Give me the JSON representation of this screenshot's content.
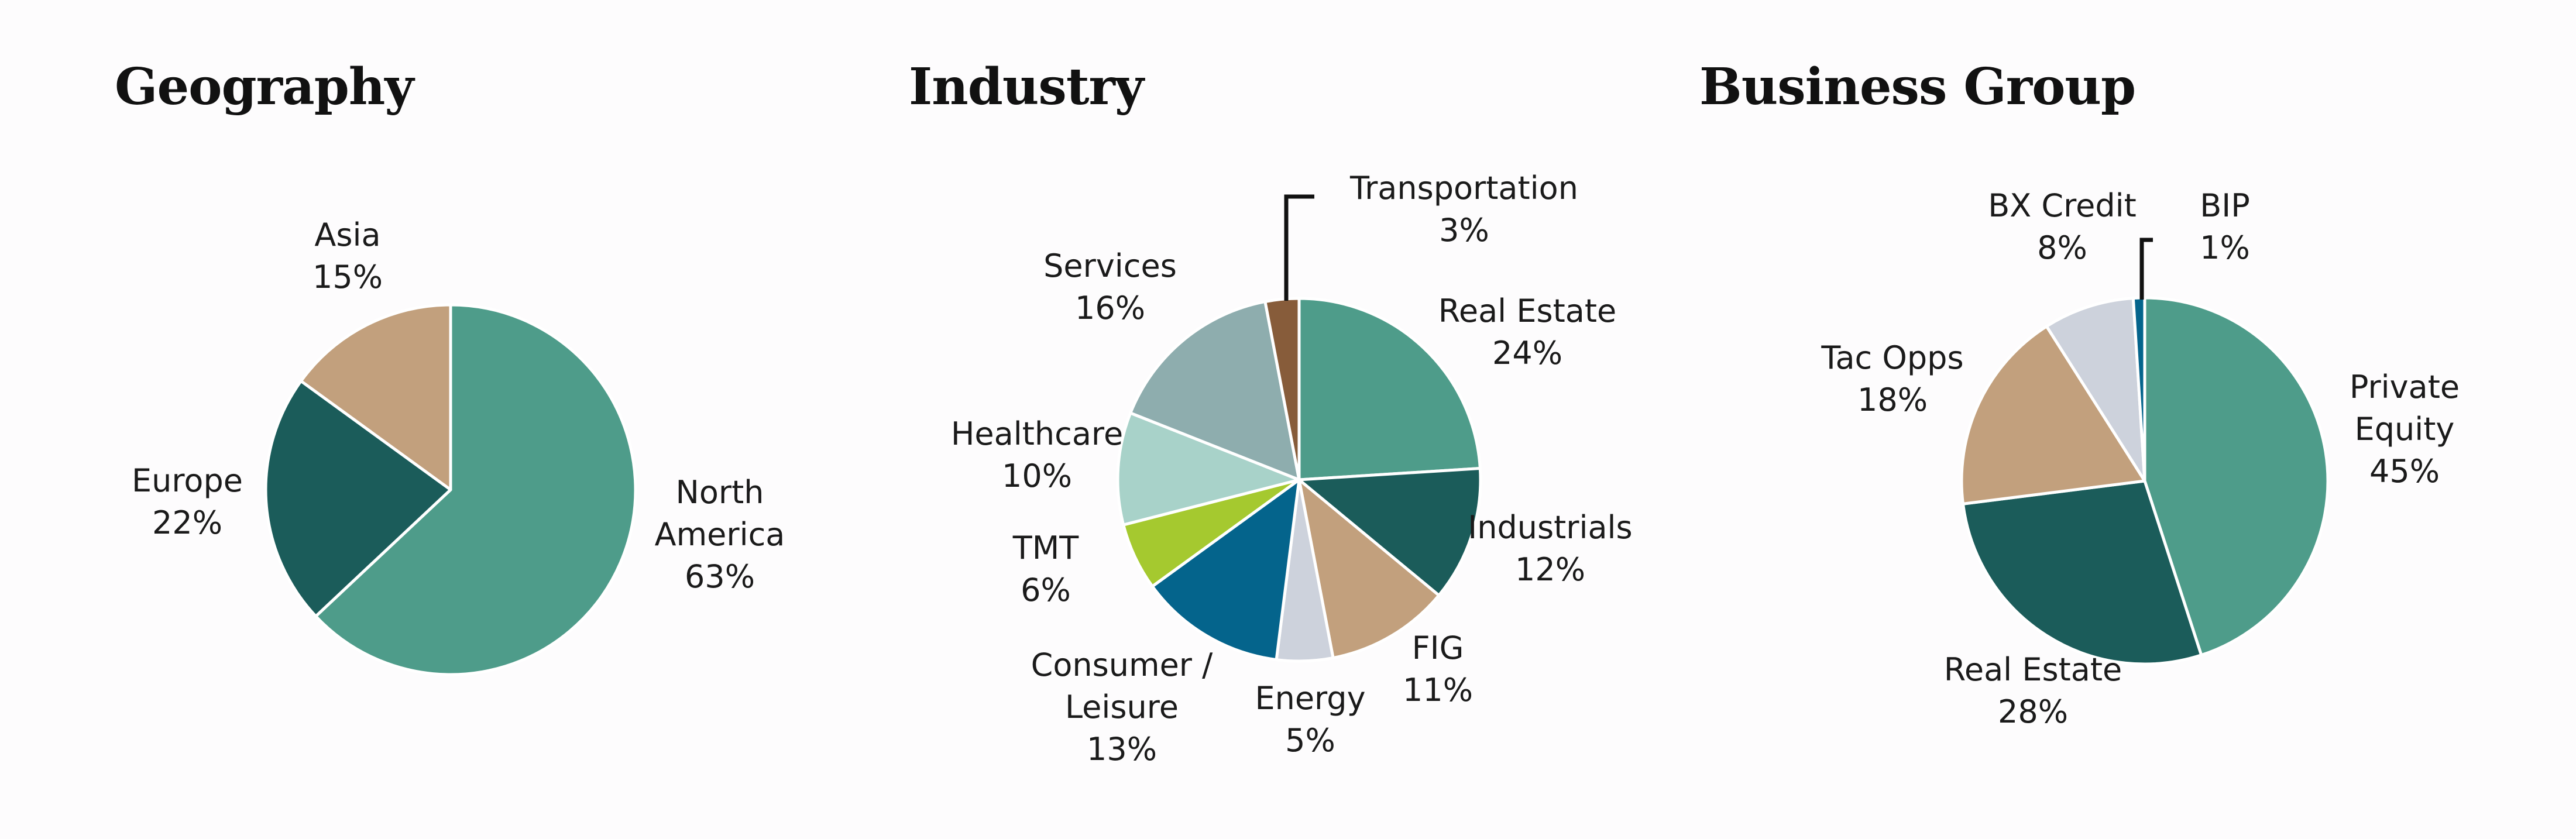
{
  "chart_data": [
    {
      "type": "pie",
      "title": "Geography",
      "slices": [
        {
          "label": "North America",
          "value": 63,
          "color": "#4e9c8a"
        },
        {
          "label": "Europe",
          "value": 22,
          "color": "#1b5c5a"
        },
        {
          "label": "Asia",
          "value": 15,
          "color": "#c2a07d"
        }
      ]
    },
    {
      "type": "pie",
      "title": "Industry",
      "slices": [
        {
          "label": "Real Estate",
          "value": 24,
          "color": "#4e9c8a"
        },
        {
          "label": "Industrials",
          "value": 12,
          "color": "#1b5c5a"
        },
        {
          "label": "FIG",
          "value": 11,
          "color": "#c2a07d"
        },
        {
          "label": "Energy",
          "value": 5,
          "color": "#cdd2dc"
        },
        {
          "label": "Consumer / Leisure",
          "value": 13,
          "color": "#04648c"
        },
        {
          "label": "TMT",
          "value": 6,
          "color": "#a5c92f"
        },
        {
          "label": "Healthcare",
          "value": 10,
          "color": "#a8d2c9"
        },
        {
          "label": "Services",
          "value": 16,
          "color": "#8eadae"
        },
        {
          "label": "Transportation",
          "value": 3,
          "color": "#875c3a"
        }
      ]
    },
    {
      "type": "pie",
      "title": "Business Group",
      "slices": [
        {
          "label": "Private Equity",
          "value": 45,
          "color": "#4e9c8a"
        },
        {
          "label": "Real Estate",
          "value": 28,
          "color": "#1b5c5a"
        },
        {
          "label": "Tac Opps",
          "value": 18,
          "color": "#c2a07d"
        },
        {
          "label": "BX Credit",
          "value": 8,
          "color": "#cdd2dc"
        },
        {
          "label": "BIP",
          "value": 1,
          "color": "#04648c"
        }
      ]
    }
  ]
}
